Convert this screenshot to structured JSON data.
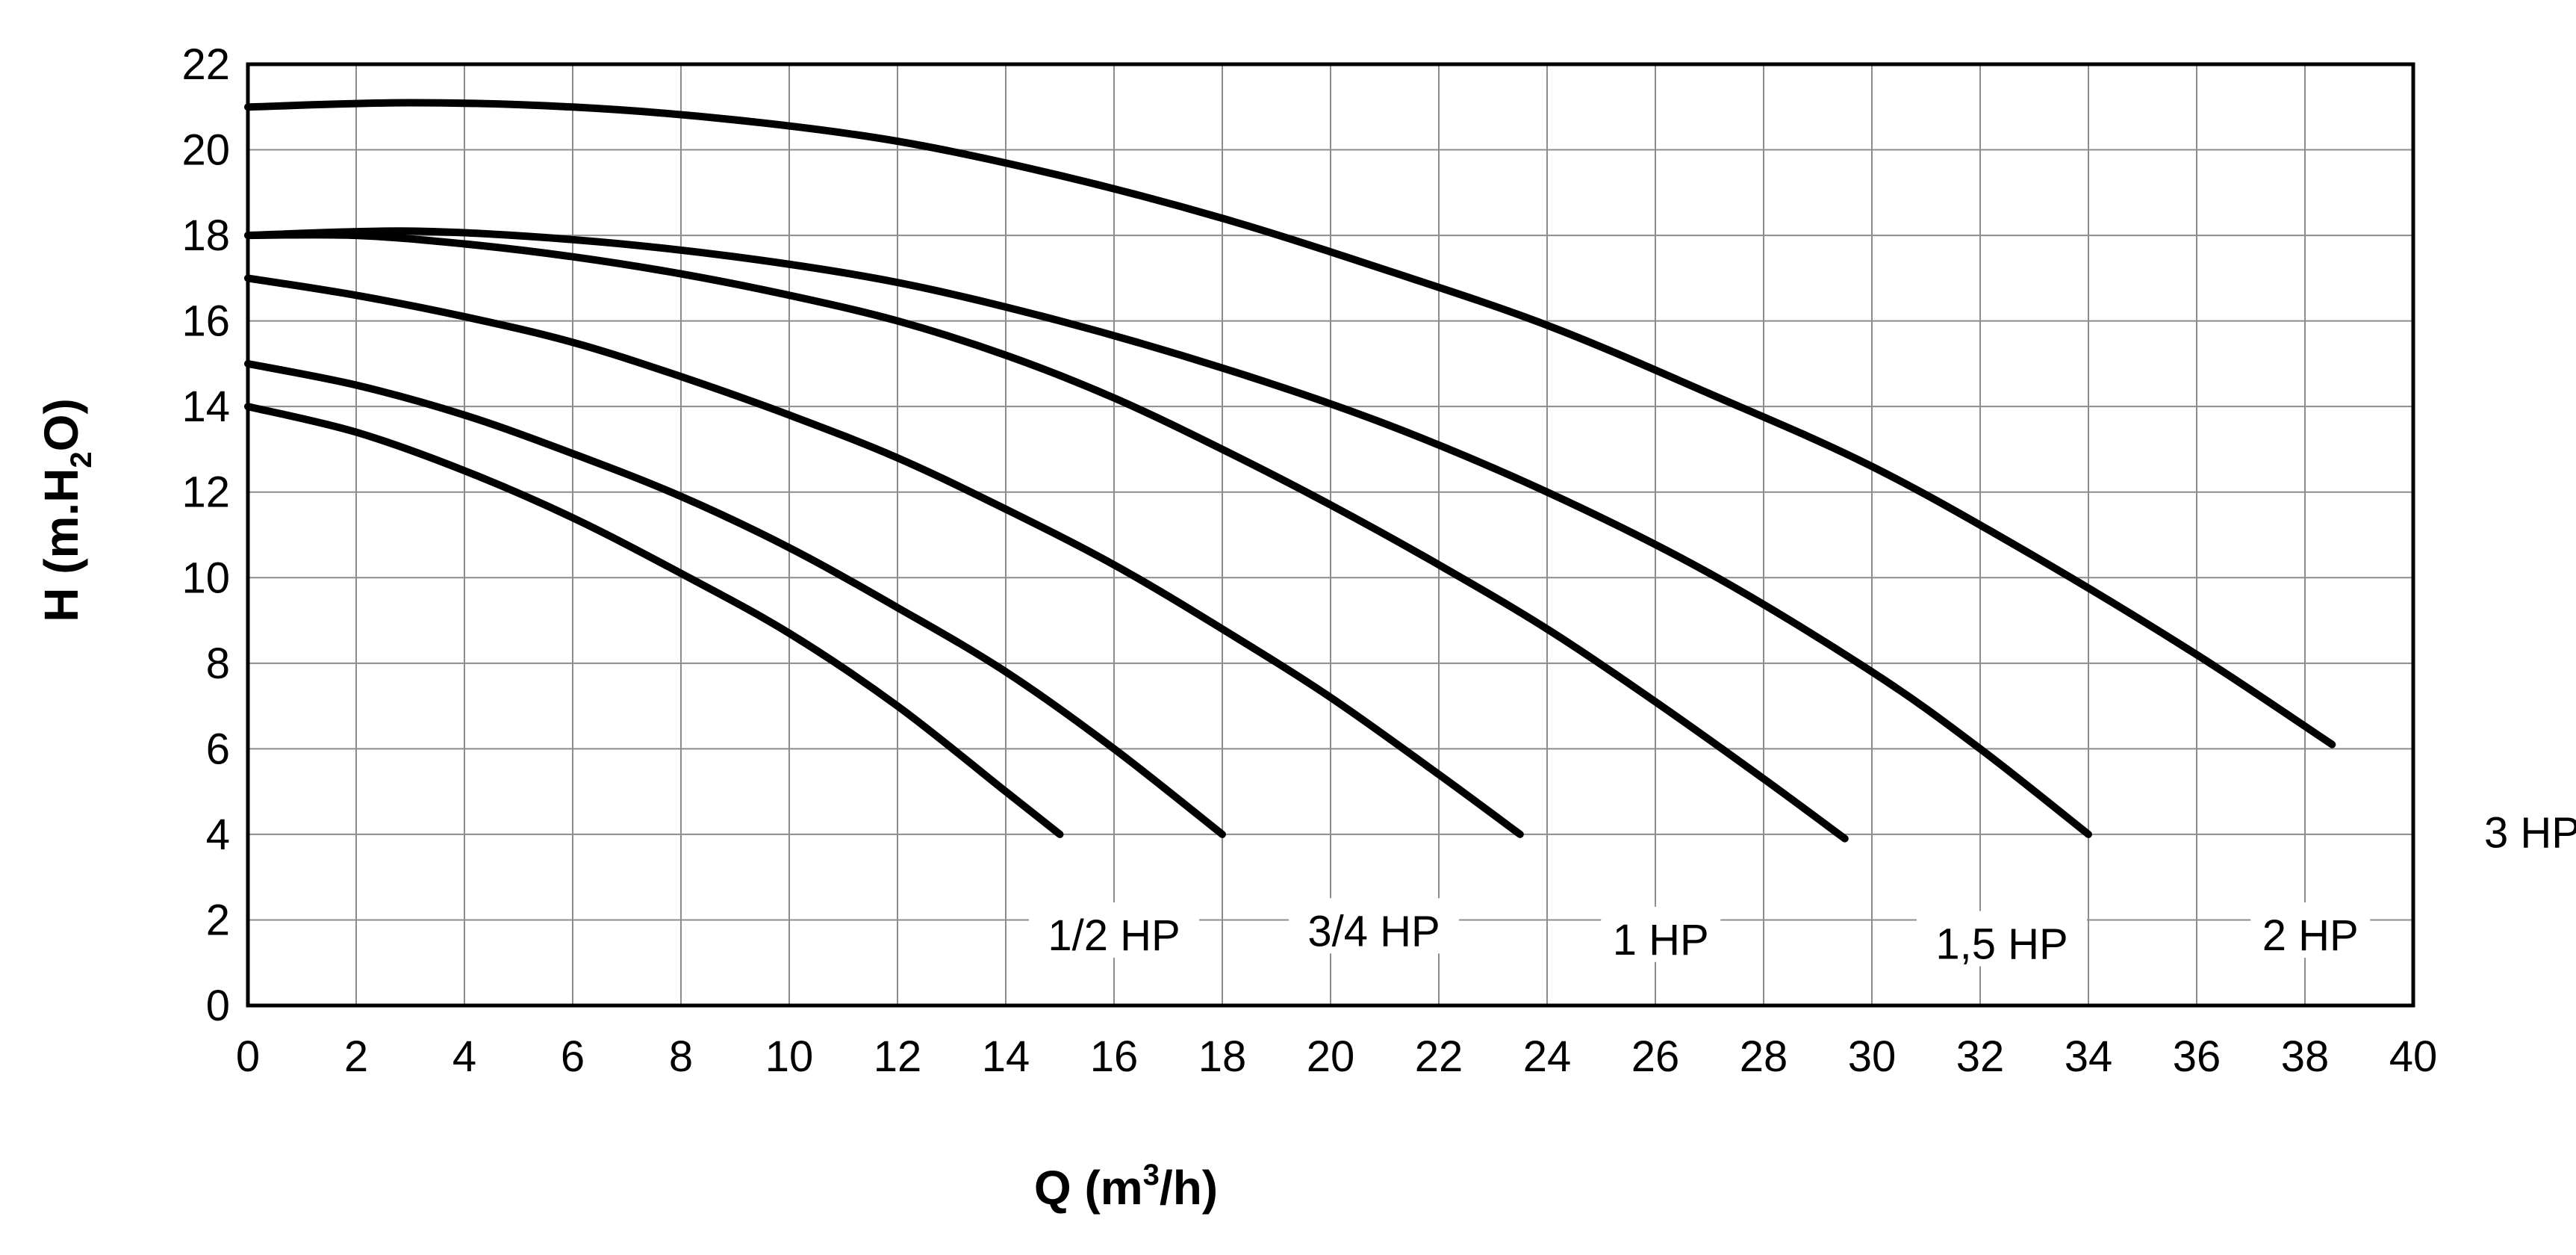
{
  "chart_data": {
    "type": "line",
    "title": "",
    "xlabel": {
      "main": "Q (m",
      "sup": "3",
      "tail": "/h)"
    },
    "ylabel": {
      "main": "H (m.H",
      "sub": "2",
      "tail": "O)"
    },
    "xlim": [
      0,
      40
    ],
    "ylim": [
      0,
      22
    ],
    "x_ticks": [
      0,
      2,
      4,
      6,
      8,
      10,
      12,
      14,
      16,
      18,
      20,
      22,
      24,
      26,
      28,
      30,
      32,
      34,
      36,
      38,
      40
    ],
    "y_ticks": [
      0,
      2,
      4,
      6,
      8,
      10,
      12,
      14,
      16,
      18,
      20,
      22
    ],
    "grid": true,
    "series": [
      {
        "name": "1/2 HP",
        "x": [
          0,
          2,
          4,
          6,
          8,
          10,
          12,
          14,
          15
        ],
        "y": [
          14,
          13.4,
          12.5,
          11.4,
          10.1,
          8.7,
          7.0,
          5.0,
          4.0
        ]
      },
      {
        "name": "3/4 HP",
        "x": [
          0,
          2,
          4,
          6,
          8,
          10,
          12,
          14,
          16,
          18
        ],
        "y": [
          15,
          14.5,
          13.8,
          12.9,
          11.9,
          10.7,
          9.3,
          7.8,
          6.0,
          4.0
        ]
      },
      {
        "name": "1 HP",
        "x": [
          0,
          2,
          4,
          6,
          8,
          10,
          12,
          14,
          16,
          18,
          20,
          22,
          23.5
        ],
        "y": [
          17,
          16.6,
          16.1,
          15.5,
          14.7,
          13.8,
          12.8,
          11.6,
          10.3,
          8.8,
          7.2,
          5.4,
          4.0
        ]
      },
      {
        "name": "1,5 HP",
        "x": [
          0,
          2,
          4,
          6,
          8,
          10,
          12,
          14,
          16,
          18,
          20,
          22,
          24,
          26,
          28,
          29.5
        ],
        "y": [
          18,
          18.0,
          17.8,
          17.5,
          17.1,
          16.6,
          16.0,
          15.2,
          14.2,
          13.0,
          11.7,
          10.3,
          8.8,
          7.1,
          5.3,
          3.9
        ]
      },
      {
        "name": "2 HP",
        "x": [
          0,
          3,
          6,
          9,
          12,
          15,
          18,
          21,
          24,
          27,
          30,
          32,
          34
        ],
        "y": [
          18,
          18.1,
          17.9,
          17.5,
          16.9,
          16.0,
          14.9,
          13.6,
          12.0,
          10.1,
          7.8,
          6.0,
          4.0
        ]
      },
      {
        "name": "3 HP",
        "x": [
          0,
          3,
          6,
          9,
          12,
          15,
          18,
          21,
          24,
          27,
          30,
          33,
          36,
          38.5
        ],
        "y": [
          21,
          21.1,
          21.0,
          20.7,
          20.2,
          19.4,
          18.4,
          17.2,
          15.9,
          14.3,
          12.6,
          10.5,
          8.2,
          6.1
        ]
      }
    ],
    "series_label_positions": [
      {
        "name": "1/2 HP",
        "anchor_data": [
          16,
          1.5
        ]
      },
      {
        "name": "3/4 HP",
        "anchor_data": [
          20.8,
          1.6
        ]
      },
      {
        "name": "1 HP",
        "anchor_data": [
          26.1,
          1.4
        ]
      },
      {
        "name": "1,5 HP",
        "anchor_data": [
          32.4,
          1.3
        ]
      },
      {
        "name": "2 HP",
        "anchor_data": [
          38.1,
          1.5
        ]
      },
      {
        "name": "3 HP",
        "anchor_data": [
          42.2,
          3.9
        ]
      }
    ]
  }
}
